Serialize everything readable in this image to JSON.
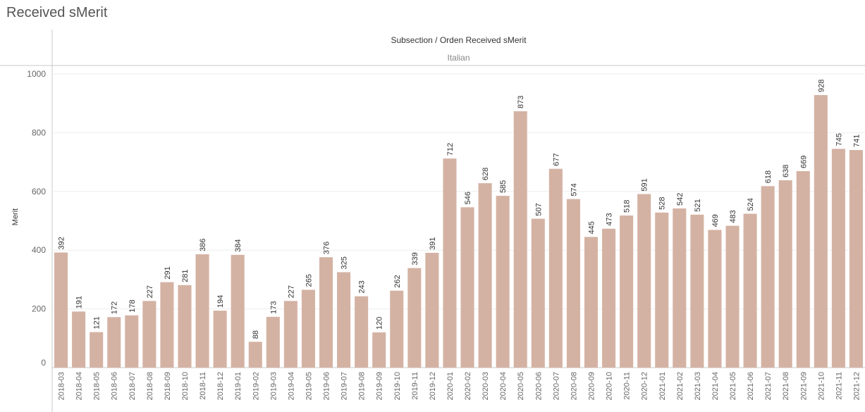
{
  "title": "Received sMerit",
  "header": {
    "column_title": "Subsection / Orden Received sMerit",
    "panel_label": "Italian"
  },
  "colors": {
    "bar": "#d4b2a3",
    "axis": "#c8c8c8",
    "grid": "#eeeeee",
    "text": "#333333",
    "tick": "#666666"
  },
  "chart_data": {
    "type": "bar",
    "title": "Received sMerit",
    "xlabel": "",
    "ylabel": "Merit",
    "ylim": [
      0,
      1000
    ],
    "yticks": [
      0,
      200,
      400,
      600,
      800,
      1000
    ],
    "grid": true,
    "categories": [
      "2018-03",
      "2018-04",
      "2018-05",
      "2018-06",
      "2018-07",
      "2018-08",
      "2018-09",
      "2018-10",
      "2018-11",
      "2018-12",
      "2019-01",
      "2019-02",
      "2019-03",
      "2019-04",
      "2019-05",
      "2019-06",
      "2019-07",
      "2019-08",
      "2019-09",
      "2019-10",
      "2019-11",
      "2019-12",
      "2020-01",
      "2020-02",
      "2020-03",
      "2020-04",
      "2020-05",
      "2020-06",
      "2020-07",
      "2020-08",
      "2020-09",
      "2020-10",
      "2020-11",
      "2020-12",
      "2021-01",
      "2021-02",
      "2021-03",
      "2021-04",
      "2021-05",
      "2021-06",
      "2021-07",
      "2021-08",
      "2021-09",
      "2021-10",
      "2021-11",
      "2021-12"
    ],
    "values": [
      392,
      191,
      121,
      172,
      178,
      227,
      291,
      281,
      386,
      194,
      384,
      88,
      173,
      227,
      265,
      376,
      325,
      243,
      120,
      262,
      339,
      391,
      712,
      546,
      628,
      585,
      873,
      507,
      677,
      574,
      445,
      473,
      518,
      591,
      528,
      542,
      521,
      469,
      483,
      524,
      618,
      638,
      669,
      928,
      745,
      741
    ]
  }
}
